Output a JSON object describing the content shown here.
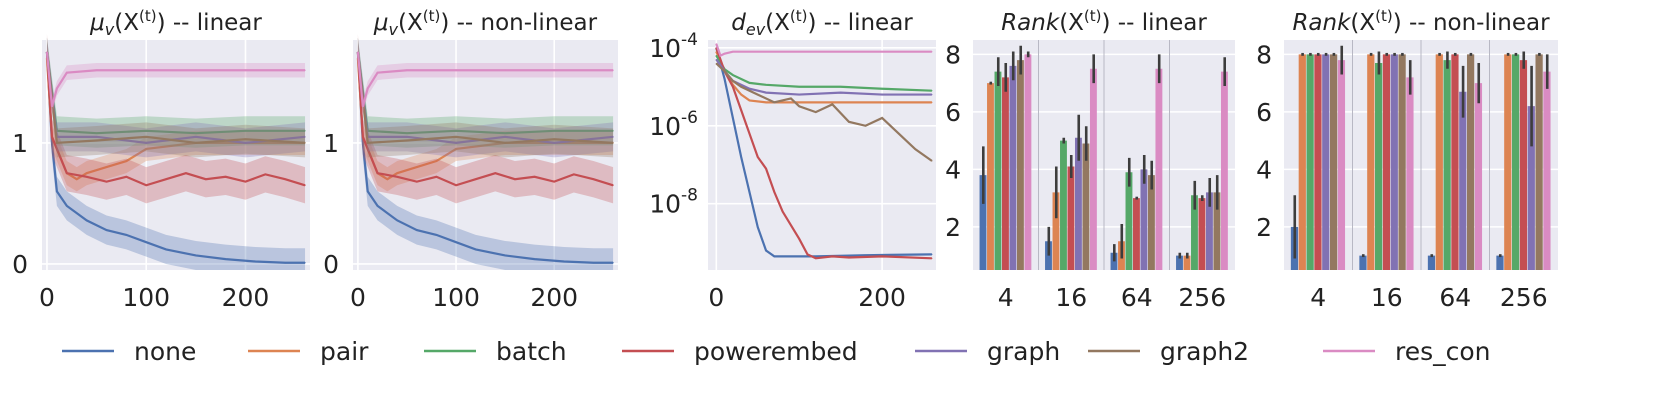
{
  "figure": {
    "legend": [
      {
        "name": "none",
        "color": "#4c72b0"
      },
      {
        "name": "pair",
        "color": "#dd8452"
      },
      {
        "name": "batch",
        "color": "#55a868"
      },
      {
        "name": "powerembed",
        "color": "#c44e52"
      },
      {
        "name": "graph",
        "color": "#8172b3"
      },
      {
        "name": "graph2",
        "color": "#937860"
      },
      {
        "name": "res_con",
        "color": "#da8bc3"
      }
    ]
  },
  "chart_data": [
    {
      "type": "line",
      "title_base": "μ",
      "title_sub": "v",
      "title_arg": "(X",
      "title_sup": "(t)",
      "title_close": ")",
      "title_suffix": " -- linear",
      "xlim": [
        -5,
        265
      ],
      "ylim": [
        -0.05,
        1.85
      ],
      "xticks": [
        0,
        100,
        200
      ],
      "yticks": [
        0,
        1
      ],
      "xlabel": "",
      "ylabel": "",
      "series": [
        {
          "name": "none",
          "x": [
            0,
            5,
            10,
            20,
            30,
            40,
            60,
            80,
            100,
            120,
            150,
            180,
            210,
            240,
            260
          ],
          "y": [
            1.75,
            1.0,
            0.6,
            0.48,
            0.42,
            0.36,
            0.28,
            0.24,
            0.18,
            0.12,
            0.07,
            0.04,
            0.02,
            0.01,
            0.01
          ],
          "band": 0.12
        },
        {
          "name": "pair",
          "x": [
            0,
            5,
            10,
            20,
            30,
            40,
            60,
            80,
            100,
            150,
            200,
            260
          ],
          "y": [
            1.7,
            1.05,
            0.95,
            0.75,
            0.7,
            0.75,
            0.8,
            0.85,
            0.95,
            1.0,
            1.0,
            1.0
          ],
          "band": 0.1
        },
        {
          "name": "batch",
          "x": [
            0,
            10,
            50,
            100,
            150,
            200,
            260
          ],
          "y": [
            1.75,
            1.1,
            1.08,
            1.1,
            1.08,
            1.1,
            1.1
          ],
          "band": 0.12
        },
        {
          "name": "powerembed",
          "x": [
            0,
            5,
            10,
            20,
            40,
            60,
            80,
            100,
            120,
            140,
            160,
            180,
            200,
            220,
            240,
            260
          ],
          "y": [
            1.75,
            1.05,
            0.95,
            0.75,
            0.72,
            0.68,
            0.72,
            0.65,
            0.7,
            0.75,
            0.7,
            0.72,
            0.68,
            0.74,
            0.7,
            0.65
          ],
          "band": 0.15
        },
        {
          "name": "graph",
          "x": [
            0,
            10,
            50,
            100,
            150,
            200,
            260
          ],
          "y": [
            1.75,
            1.05,
            1.05,
            1.0,
            1.05,
            1.0,
            1.05
          ],
          "band": 0.12
        },
        {
          "name": "graph2",
          "x": [
            0,
            10,
            50,
            100,
            150,
            200,
            260
          ],
          "y": [
            1.75,
            1.0,
            1.02,
            1.05,
            1.0,
            1.03,
            1.0
          ],
          "band": 0.12
        },
        {
          "name": "res_con",
          "x": [
            0,
            5,
            10,
            20,
            50,
            100,
            150,
            200,
            260
          ],
          "y": [
            1.75,
            1.3,
            1.45,
            1.58,
            1.6,
            1.6,
            1.6,
            1.6,
            1.6
          ],
          "band": 0.06
        }
      ]
    },
    {
      "type": "line",
      "title_base": "μ",
      "title_sub": "v",
      "title_arg": "(X",
      "title_sup": "(t)",
      "title_close": ")",
      "title_suffix": " -- non-linear",
      "xlim": [
        -5,
        265
      ],
      "ylim": [
        -0.05,
        1.85
      ],
      "xticks": [
        0,
        100,
        200
      ],
      "yticks": [
        0,
        1
      ],
      "xlabel": "",
      "ylabel": "",
      "series": [
        {
          "name": "none",
          "x": [
            0,
            5,
            10,
            20,
            30,
            40,
            60,
            80,
            100,
            120,
            150,
            180,
            210,
            240,
            260
          ],
          "y": [
            1.75,
            1.0,
            0.6,
            0.48,
            0.42,
            0.36,
            0.28,
            0.24,
            0.18,
            0.12,
            0.07,
            0.04,
            0.02,
            0.01,
            0.01
          ],
          "band": 0.12
        },
        {
          "name": "pair",
          "x": [
            0,
            5,
            10,
            20,
            30,
            40,
            60,
            80,
            100,
            150,
            200,
            260
          ],
          "y": [
            1.7,
            1.05,
            0.95,
            0.75,
            0.7,
            0.75,
            0.8,
            0.85,
            0.95,
            1.0,
            1.0,
            1.0
          ],
          "band": 0.1
        },
        {
          "name": "batch",
          "x": [
            0,
            10,
            50,
            100,
            150,
            200,
            260
          ],
          "y": [
            1.75,
            1.1,
            1.08,
            1.1,
            1.08,
            1.1,
            1.1
          ],
          "band": 0.12
        },
        {
          "name": "powerembed",
          "x": [
            0,
            5,
            10,
            20,
            40,
            60,
            80,
            100,
            120,
            140,
            160,
            180,
            200,
            220,
            240,
            260
          ],
          "y": [
            1.75,
            1.05,
            0.95,
            0.75,
            0.72,
            0.68,
            0.72,
            0.65,
            0.7,
            0.75,
            0.7,
            0.72,
            0.68,
            0.74,
            0.7,
            0.65
          ],
          "band": 0.15
        },
        {
          "name": "graph",
          "x": [
            0,
            10,
            50,
            100,
            150,
            200,
            260
          ],
          "y": [
            1.75,
            1.05,
            1.05,
            1.0,
            1.05,
            1.0,
            1.05
          ],
          "band": 0.12
        },
        {
          "name": "graph2",
          "x": [
            0,
            10,
            50,
            100,
            150,
            200,
            260
          ],
          "y": [
            1.75,
            1.0,
            1.02,
            1.05,
            1.0,
            1.03,
            1.0
          ],
          "band": 0.12
        },
        {
          "name": "res_con",
          "x": [
            0,
            5,
            10,
            20,
            50,
            100,
            150,
            200,
            260
          ],
          "y": [
            1.75,
            1.3,
            1.45,
            1.58,
            1.6,
            1.6,
            1.6,
            1.6,
            1.6
          ],
          "band": 0.06
        }
      ]
    },
    {
      "type": "line",
      "yscale": "log",
      "title_base": "d",
      "title_sub": "ev",
      "title_arg": "(X",
      "title_sup": "(t)",
      "title_close": ")",
      "title_suffix": " -- linear",
      "xlim": [
        -10,
        265
      ],
      "ylim_log10": [
        -9.7,
        -3.8
      ],
      "xticks": [
        0,
        200
      ],
      "yticks_exp": [
        -4,
        -6,
        -8
      ],
      "ytick_base": "10",
      "xlabel": "",
      "ylabel": "",
      "series": [
        {
          "name": "none",
          "x": [
            0,
            10,
            20,
            30,
            40,
            50,
            60,
            70,
            80,
            120,
            180,
            260
          ],
          "log10y": [
            -4.0,
            -4.8,
            -5.8,
            -6.8,
            -7.7,
            -8.6,
            -9.2,
            -9.35,
            -9.35,
            -9.35,
            -9.32,
            -9.3
          ]
        },
        {
          "name": "pair",
          "x": [
            0,
            10,
            20,
            30,
            40,
            60,
            100,
            150,
            200,
            260
          ],
          "log10y": [
            -4.1,
            -4.6,
            -4.95,
            -5.2,
            -5.35,
            -5.4,
            -5.4,
            -5.4,
            -5.4,
            -5.4
          ]
        },
        {
          "name": "batch",
          "x": [
            0,
            10,
            20,
            40,
            60,
            100,
            150,
            200,
            260
          ],
          "log10y": [
            -4.2,
            -4.55,
            -4.7,
            -4.9,
            -4.95,
            -5.0,
            -5.0,
            -5.05,
            -5.1
          ]
        },
        {
          "name": "powerembed",
          "x": [
            0,
            10,
            20,
            30,
            40,
            50,
            60,
            70,
            80,
            100,
            110,
            120,
            140,
            160,
            200,
            260
          ],
          "log10y": [
            -4.0,
            -4.6,
            -5.0,
            -5.6,
            -6.2,
            -6.8,
            -7.1,
            -7.7,
            -8.2,
            -8.9,
            -9.3,
            -9.4,
            -9.35,
            -9.38,
            -9.35,
            -9.4
          ]
        },
        {
          "name": "graph",
          "x": [
            0,
            10,
            20,
            40,
            60,
            100,
            150,
            200,
            260
          ],
          "log10y": [
            -4.3,
            -4.6,
            -4.85,
            -5.05,
            -5.15,
            -5.2,
            -5.15,
            -5.2,
            -5.2
          ]
        },
        {
          "name": "graph2",
          "x": [
            0,
            10,
            20,
            30,
            50,
            70,
            90,
            100,
            120,
            140,
            160,
            180,
            200,
            220,
            240,
            260
          ],
          "log10y": [
            -4.4,
            -4.6,
            -4.85,
            -5.0,
            -5.2,
            -5.4,
            -5.3,
            -5.5,
            -5.65,
            -5.45,
            -5.9,
            -6.0,
            -5.8,
            -6.2,
            -6.6,
            -6.9
          ]
        },
        {
          "name": "res_con",
          "x": [
            0,
            5,
            10,
            20,
            50,
            100,
            150,
            200,
            260
          ],
          "log10y": [
            -3.9,
            -4.2,
            -4.15,
            -4.1,
            -4.1,
            -4.1,
            -4.1,
            -4.1,
            -4.1
          ]
        }
      ]
    },
    {
      "type": "bar",
      "title_base": "Rank",
      "title_sub": "",
      "title_arg": "(X",
      "title_sup": "(t)",
      "title_close": ")",
      "title_suffix": " -- linear",
      "categories": [
        "4",
        "16",
        "64",
        "256"
      ],
      "ylim": [
        0.5,
        8.5
      ],
      "yticks": [
        2,
        4,
        6,
        8
      ],
      "xlabel": "",
      "ylabel": "",
      "series": [
        {
          "name": "none",
          "values": [
            3.8,
            1.5,
            1.1,
            1.0
          ],
          "err": [
            1.0,
            0.5,
            0.3,
            0.1
          ]
        },
        {
          "name": "pair",
          "values": [
            7.0,
            3.2,
            1.5,
            1.0
          ],
          "err": [
            0.05,
            0.9,
            0.6,
            0.1
          ]
        },
        {
          "name": "batch",
          "values": [
            7.4,
            5.0,
            3.9,
            3.1
          ],
          "err": [
            0.5,
            0.1,
            0.5,
            0.5
          ]
        },
        {
          "name": "powerembed",
          "values": [
            7.2,
            4.1,
            3.0,
            3.0
          ],
          "err": [
            0.5,
            0.4,
            0.05,
            0.1
          ]
        },
        {
          "name": "graph",
          "values": [
            7.6,
            5.1,
            4.0,
            3.2
          ],
          "err": [
            0.5,
            0.8,
            0.5,
            0.5
          ]
        },
        {
          "name": "graph2",
          "values": [
            7.8,
            4.9,
            3.8,
            3.2
          ],
          "err": [
            0.5,
            0.6,
            0.5,
            0.6
          ]
        },
        {
          "name": "res_con",
          "values": [
            8.0,
            7.5,
            7.5,
            7.4
          ],
          "err": [
            0.1,
            0.5,
            0.5,
            0.5
          ]
        }
      ]
    },
    {
      "type": "bar",
      "title_base": "Rank",
      "title_sub": "",
      "title_arg": "(X",
      "title_sup": "(t)",
      "title_close": ")",
      "title_suffix": " -- non-linear",
      "categories": [
        "4",
        "16",
        "64",
        "256"
      ],
      "ylim": [
        0.5,
        8.5
      ],
      "yticks": [
        2,
        4,
        6,
        8
      ],
      "xlabel": "",
      "ylabel": "",
      "series": [
        {
          "name": "none",
          "values": [
            2.0,
            1.0,
            1.0,
            1.0
          ],
          "err": [
            1.1,
            0.05,
            0.05,
            0.05
          ]
        },
        {
          "name": "pair",
          "values": [
            8.0,
            8.0,
            8.0,
            8.0
          ],
          "err": [
            0.05,
            0.05,
            0.05,
            0.05
          ]
        },
        {
          "name": "batch",
          "values": [
            8.0,
            7.7,
            7.8,
            8.0
          ],
          "err": [
            0.05,
            0.4,
            0.3,
            0.05
          ]
        },
        {
          "name": "powerembed",
          "values": [
            8.0,
            8.0,
            8.0,
            7.8
          ],
          "err": [
            0.05,
            0.05,
            0.05,
            0.3
          ]
        },
        {
          "name": "graph",
          "values": [
            8.0,
            8.0,
            6.7,
            6.2
          ],
          "err": [
            0.05,
            0.05,
            0.9,
            1.4
          ]
        },
        {
          "name": "graph2",
          "values": [
            8.0,
            8.0,
            8.0,
            8.0
          ],
          "err": [
            0.05,
            0.05,
            0.05,
            0.05
          ]
        },
        {
          "name": "res_con",
          "values": [
            7.8,
            7.2,
            7.0,
            7.4
          ],
          "err": [
            0.5,
            0.6,
            0.7,
            0.6
          ]
        }
      ]
    }
  ]
}
